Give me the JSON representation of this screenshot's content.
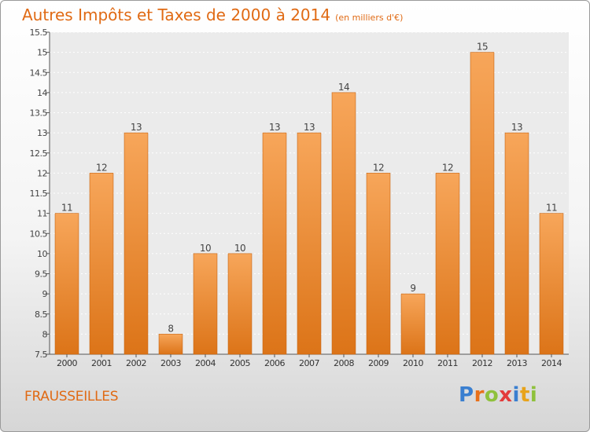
{
  "title": "Autres Impôts et Taxes de 2000 à 2014",
  "unit": "(en milliers d'€)",
  "town": "FRAUSSEILLES",
  "logo": [
    "P",
    "r",
    "o",
    "x",
    "i",
    "t",
    "i"
  ],
  "logo_colors": [
    "#3a7fd0",
    "#e8701a",
    "#8fc13c",
    "#e33b3b",
    "#3a7fd0",
    "#e8a31a",
    "#8fc13c"
  ],
  "colors": {
    "bar_top": "#f7a65a",
    "bar_bottom": "#dc7418",
    "bar_edge": "#c7630f",
    "accent": "#e06a14"
  },
  "chart_data": {
    "type": "bar",
    "categories": [
      "2000",
      "2001",
      "2002",
      "2003",
      "2004",
      "2005",
      "2006",
      "2007",
      "2008",
      "2009",
      "2010",
      "2011",
      "2012",
      "2013",
      "2014"
    ],
    "values": [
      11,
      12,
      13,
      8,
      10,
      10,
      13,
      13,
      14,
      12,
      9,
      12,
      15,
      13,
      11
    ],
    "labels": [
      "11",
      "12",
      "13",
      "8",
      "10",
      "10",
      "13",
      "13",
      "14",
      "12",
      "9",
      "12",
      "15",
      "13",
      "11"
    ],
    "ylim": [
      7.5,
      15.5
    ],
    "yticks": [
      7.5,
      8,
      8.5,
      9,
      9.5,
      10,
      10.5,
      11,
      11.5,
      12,
      12.5,
      13,
      13.5,
      14,
      14.5,
      15,
      15.5
    ],
    "yticklabels": [
      "7.5",
      "8",
      "8.5",
      "9",
      "9.5",
      "10",
      "10.5",
      "11",
      "11.5",
      "12",
      "12.5",
      "13",
      "13.5",
      "14",
      "14.5",
      "15",
      "15.5"
    ],
    "grid": true,
    "title": "Autres Impôts et Taxes de 2000 à 2014",
    "xlabel": "",
    "ylabel": ""
  }
}
